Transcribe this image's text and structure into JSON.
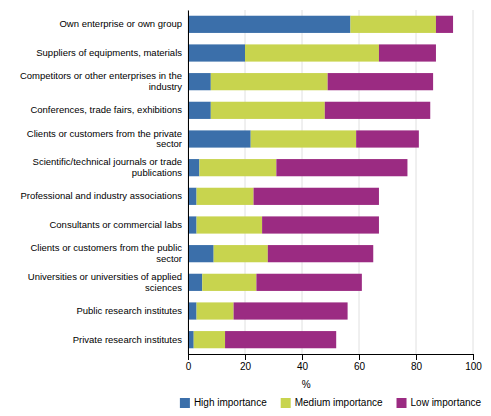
{
  "chart_data": {
    "type": "bar",
    "orientation": "horizontal",
    "stacked": true,
    "categories": [
      "Own enterprise or own group",
      "Suppliers of equipments, materials",
      "Competitors or other enterprises in the\nindustry",
      "Conferences, trade fairs, exhibitions",
      "Clients or customers from the private\nsector",
      "Scientific/technical journals or trade\npublications",
      "Professional and industry associations",
      "Consultants or commercial labs",
      "Clients or customers from the public\nsector",
      "Universities or universities of applied\nsciences",
      "Public research institutes",
      "Private research institutes"
    ],
    "series": [
      {
        "name": "High importance",
        "color": "#3b6faa",
        "values": [
          57,
          20,
          8,
          8,
          22,
          4,
          3,
          3,
          9,
          5,
          3,
          2
        ]
      },
      {
        "name": "Medium importance",
        "color": "#c8d44e",
        "values": [
          30,
          47,
          41,
          40,
          37,
          27,
          20,
          23,
          19,
          19,
          13,
          11
        ]
      },
      {
        "name": "Low importance",
        "color": "#9b2b82",
        "values": [
          6,
          20,
          37,
          37,
          22,
          46,
          44,
          41,
          37,
          37,
          40,
          39
        ]
      }
    ],
    "xlabel": "%",
    "xlim": [
      0,
      100
    ],
    "xticks": [
      0,
      20,
      40,
      60,
      80,
      100
    ],
    "grid": true,
    "legend": "bottom"
  }
}
